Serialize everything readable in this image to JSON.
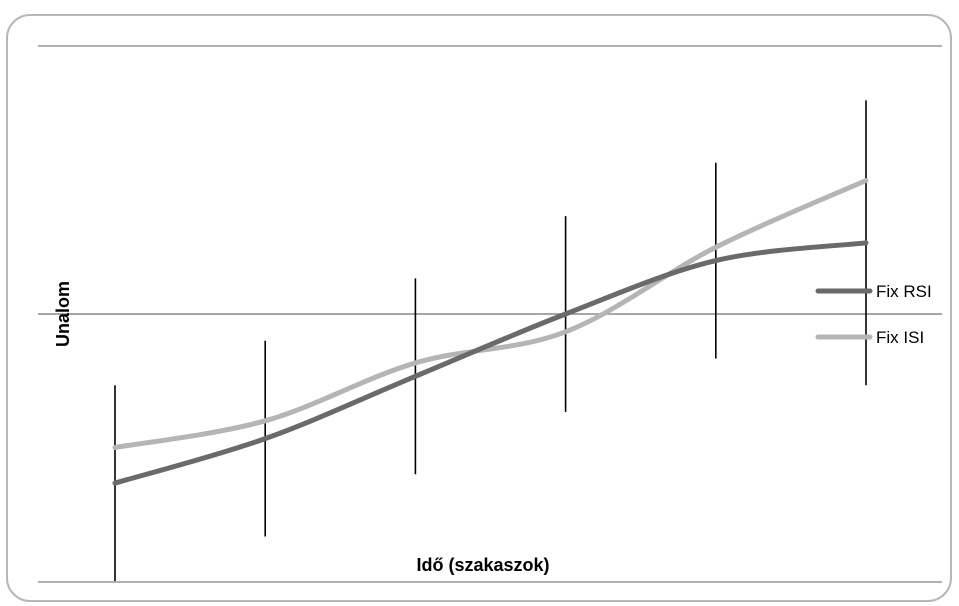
{
  "chart_data": {
    "type": "line",
    "xlabel": "Idő (szakaszok)",
    "ylabel": "Unalom",
    "x": [
      1,
      2,
      3,
      4,
      5,
      6
    ],
    "ylim": [
      -3,
      3
    ],
    "grid": false,
    "legend_position": "right",
    "series": [
      {
        "name": "Fix RSI",
        "color": "#6a6a6a",
        "values": [
          -1.9,
          -1.4,
          -0.7,
          0.0,
          0.6,
          0.8
        ],
        "error": [
          1.1,
          1.1,
          1.1,
          1.1,
          1.1,
          1.6
        ]
      },
      {
        "name": "Fix ISI",
        "color": "#b5b5b5",
        "values": [
          -1.5,
          -1.2,
          -0.55,
          -0.2,
          0.75,
          1.5
        ]
      }
    ]
  }
}
